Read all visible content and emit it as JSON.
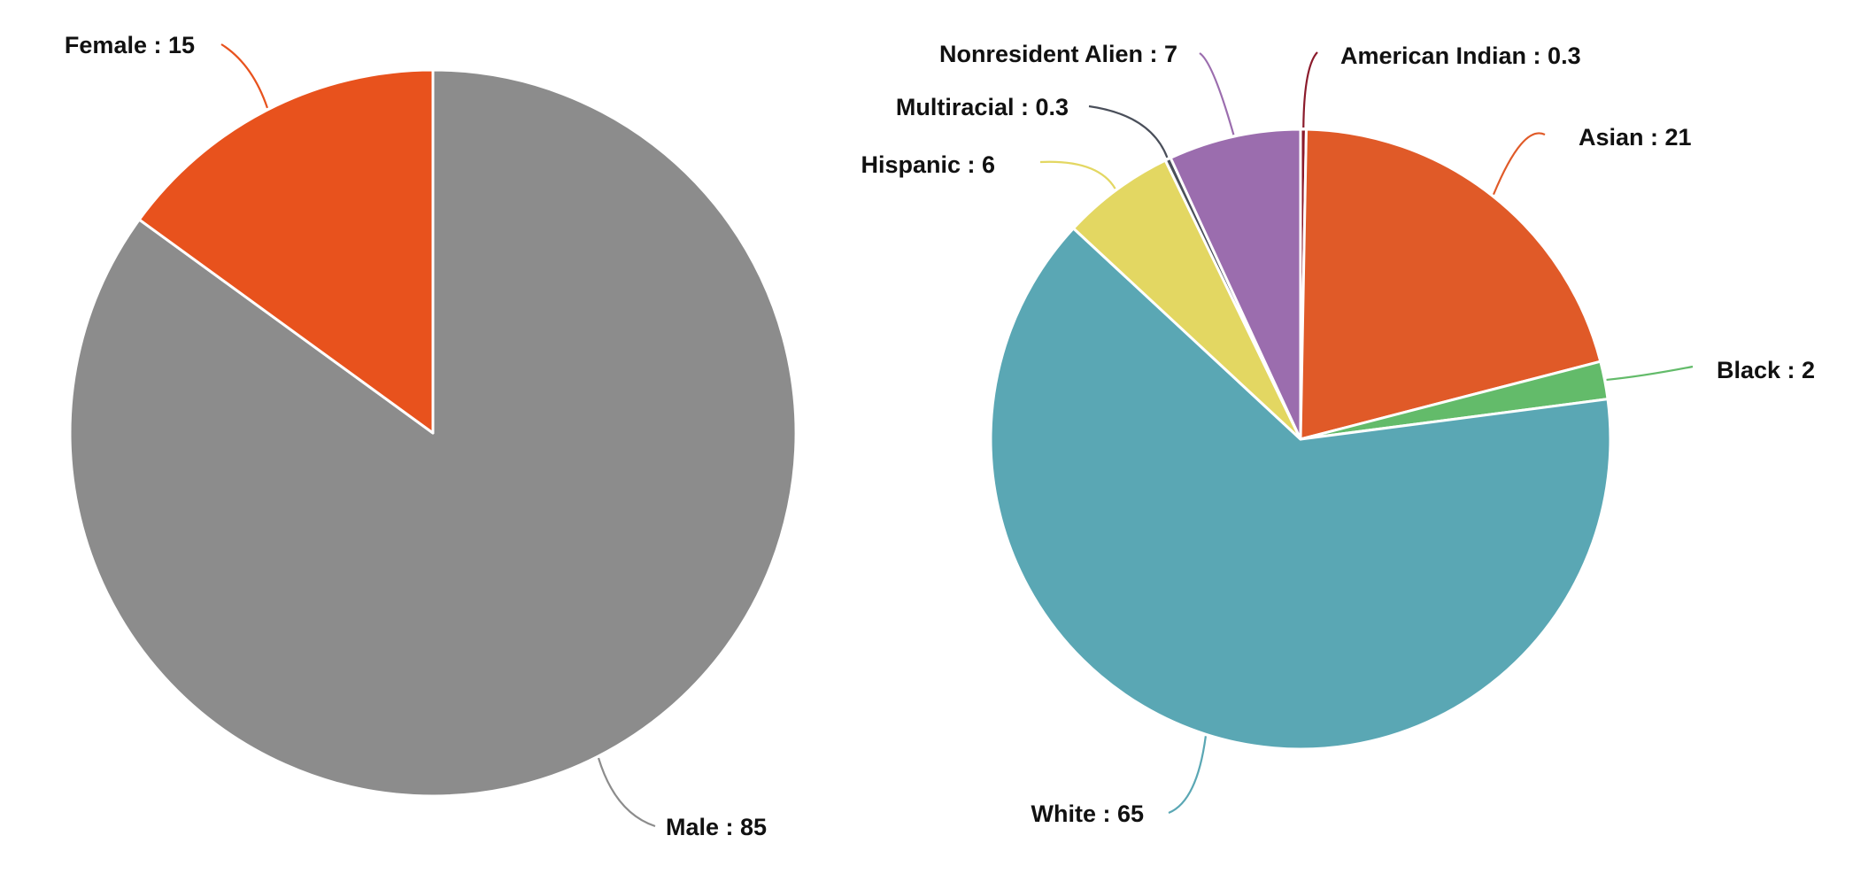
{
  "chart_data": [
    {
      "type": "pie",
      "title": "",
      "unit": "%",
      "slices": [
        {
          "label": "Male",
          "value": 85,
          "display": "Male : 85",
          "color": "#8c8c8c",
          "label_side": "right"
        },
        {
          "label": "Female",
          "value": 15,
          "display": "Female : 15",
          "color": "#e8521d",
          "label_side": "left"
        }
      ]
    },
    {
      "type": "pie",
      "title": "",
      "unit": "%",
      "slices": [
        {
          "label": "American Indian",
          "value": 0.3,
          "display": "American Indian : 0.3",
          "color": "#8b1a2b",
          "label_side": "right"
        },
        {
          "label": "Asian",
          "value": 21,
          "display": "Asian : 21",
          "color": "#e05a28",
          "label_side": "right"
        },
        {
          "label": "Black",
          "value": 2,
          "display": "Black : 2",
          "color": "#63bb6a",
          "label_side": "right"
        },
        {
          "label": "White",
          "value": 65,
          "display": "White : 65",
          "color": "#5aa7b4",
          "label_side": "left"
        },
        {
          "label": "Hispanic",
          "value": 6,
          "display": "Hispanic : 6",
          "color": "#e3d762",
          "label_side": "left"
        },
        {
          "label": "Multiracial",
          "value": 0.3,
          "display": "Multiracial : 0.3",
          "color": "#4a4f5a",
          "label_side": "left"
        },
        {
          "label": "Nonresident Alien",
          "value": 7,
          "display": "Nonresident Alien : 7",
          "color": "#9b6dae",
          "label_side": "left"
        }
      ]
    }
  ]
}
